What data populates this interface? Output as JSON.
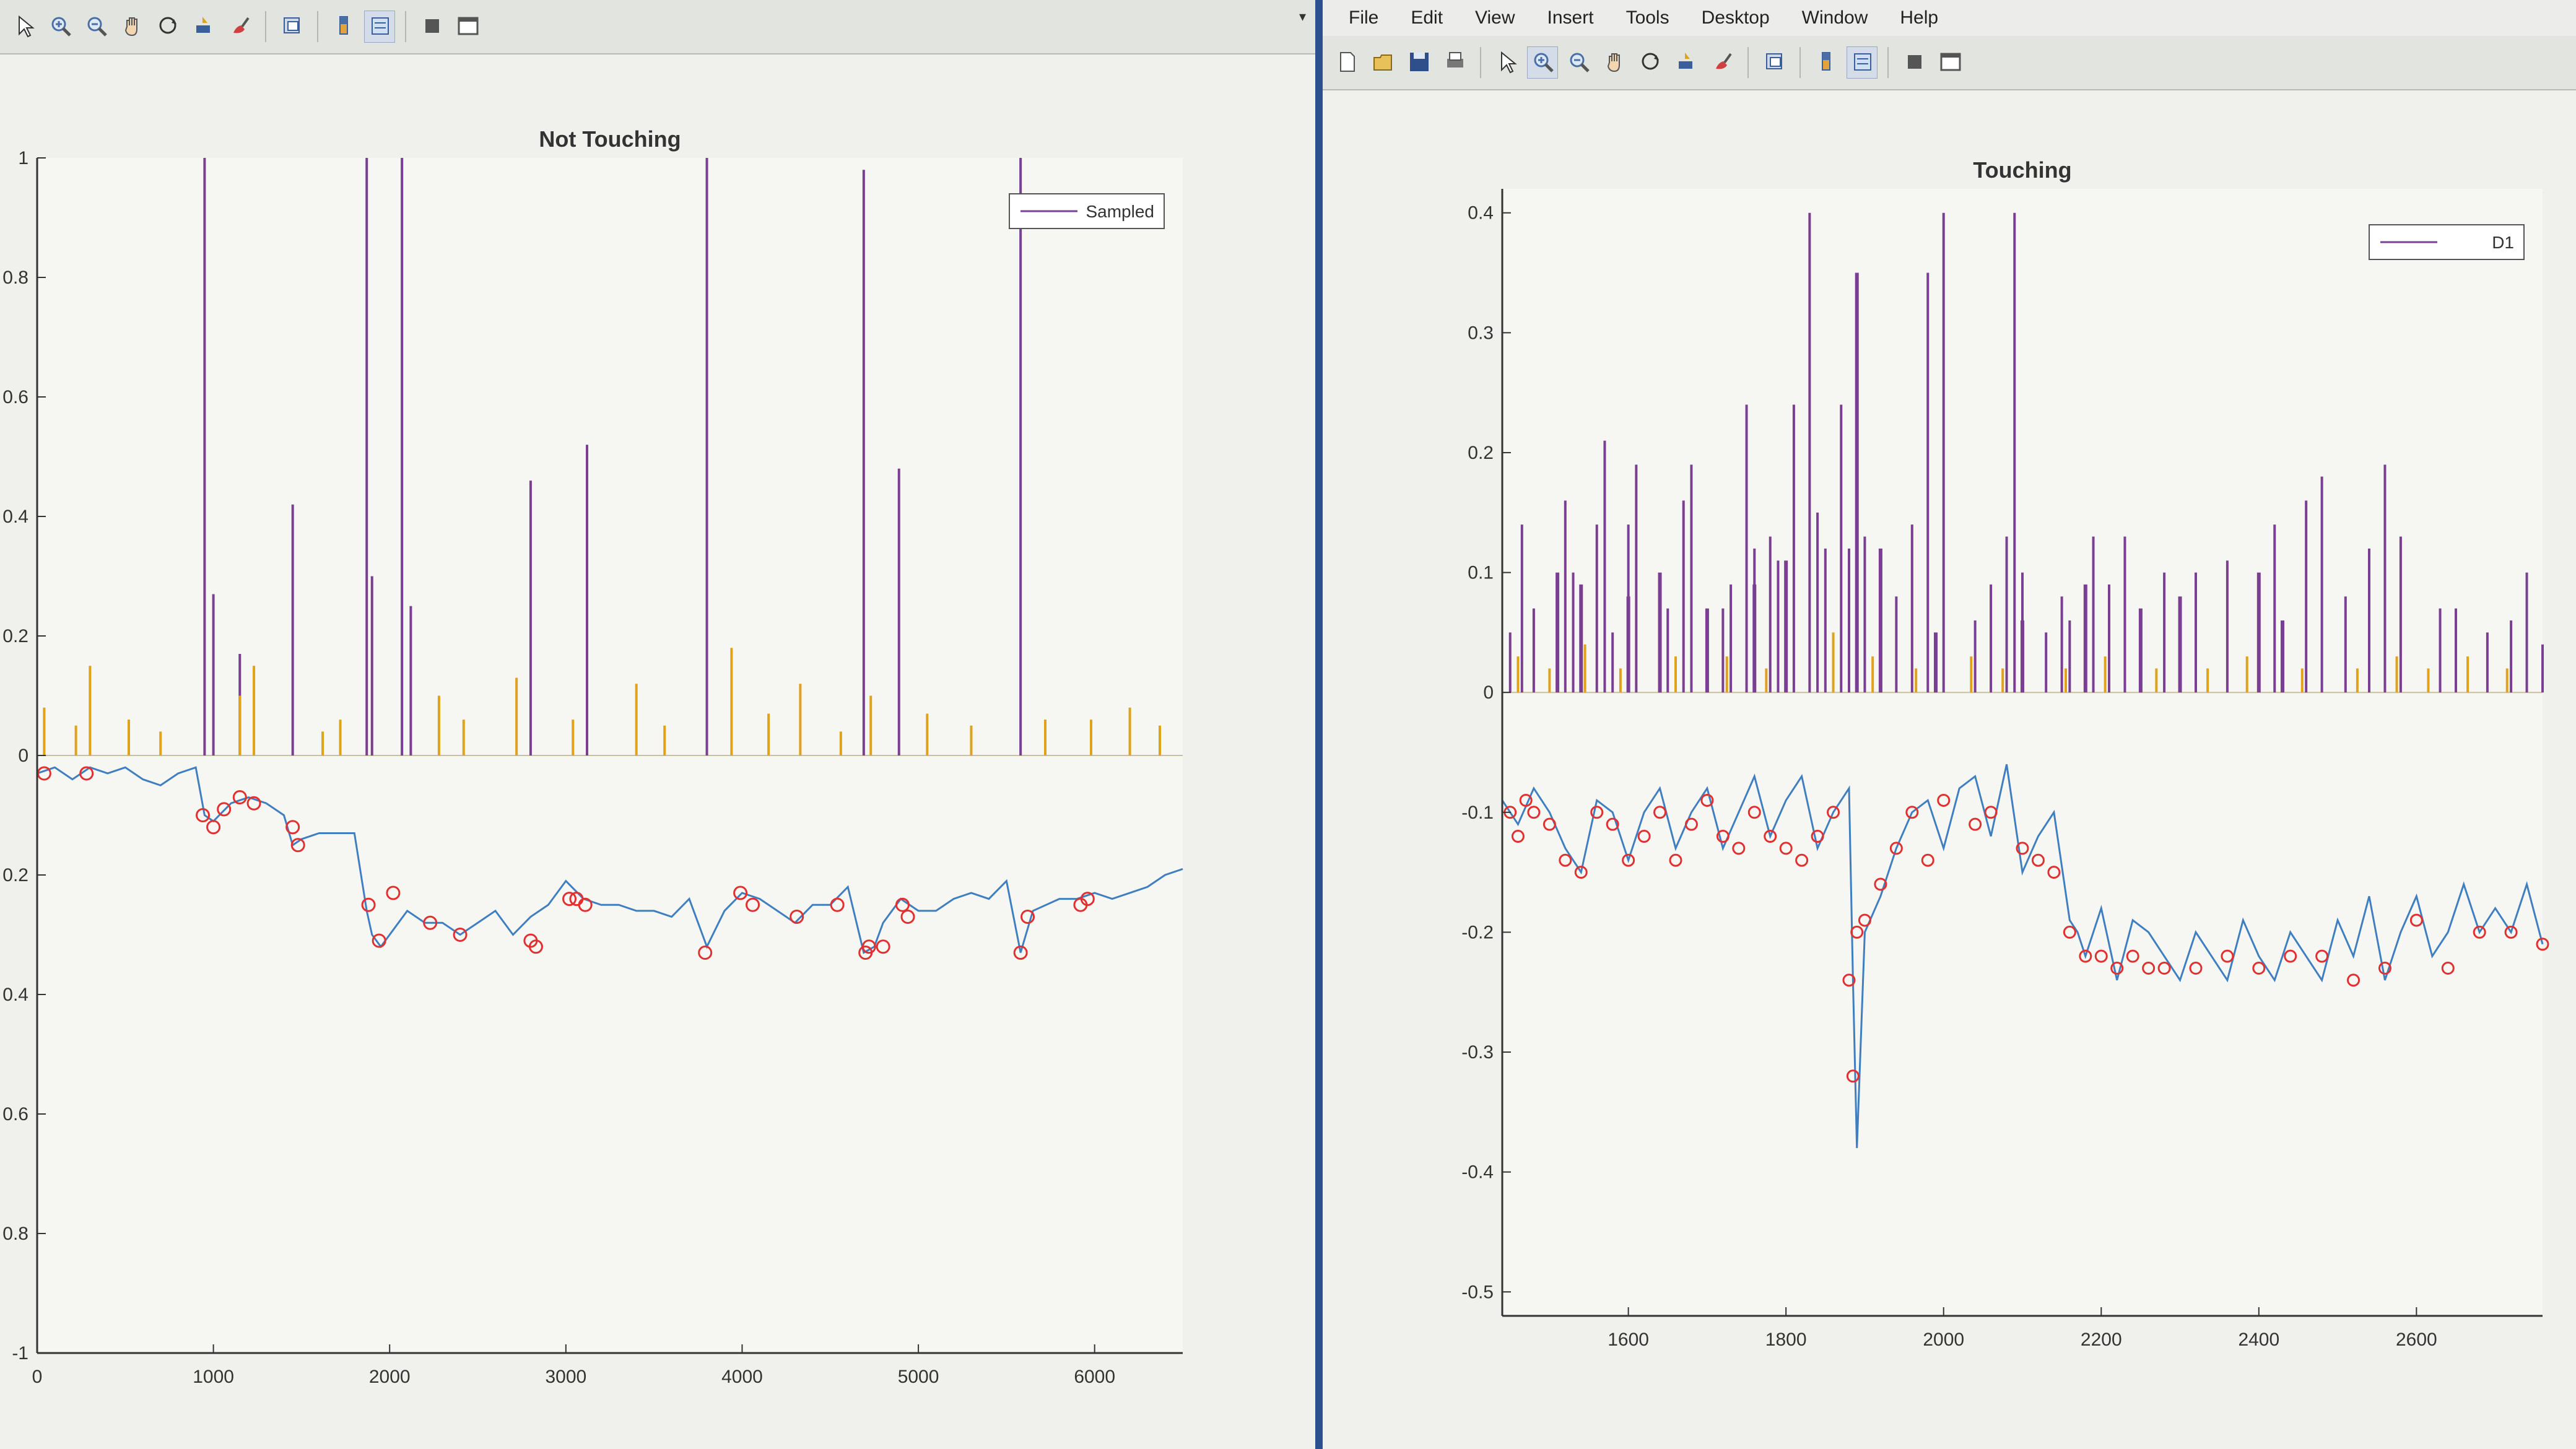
{
  "menu": {
    "items": [
      "File",
      "Edit",
      "View",
      "Insert",
      "Tools",
      "Desktop",
      "Window",
      "Help"
    ]
  },
  "toolbar_left": {
    "icons": [
      "pointer-icon",
      "zoom-in-icon",
      "zoom-out-icon",
      "pan-hand-icon",
      "rotate-3d-icon",
      "data-cursor-icon",
      "brush-icon",
      "link-plot-icon",
      "colorbar-icon",
      "legend-icon",
      "hide-plot-tools-icon",
      "show-plot-tools-icon"
    ]
  },
  "toolbar_right": {
    "icons": [
      "new-figure-icon",
      "open-file-icon",
      "save-icon",
      "print-icon",
      "pointer-icon",
      "zoom-in-icon",
      "zoom-out-icon",
      "pan-hand-icon",
      "rotate-3d-icon",
      "data-cursor-icon",
      "brush-icon",
      "link-plot-icon",
      "colorbar-icon",
      "legend-icon",
      "hide-plot-tools-icon",
      "show-plot-tools-icon"
    ]
  },
  "colors": {
    "spike_series": "#7a3f93",
    "orange_series": "#e0a21a",
    "blue_series": "#3f7fc0",
    "marker": "#e03030",
    "axes": "#333333"
  },
  "chart_data": [
    {
      "type": "line",
      "title": "Not Touching",
      "legend": [
        "Sampled"
      ],
      "legend_position": "top-right",
      "xlim": [
        0,
        6500
      ],
      "ylim": [
        -1,
        1
      ],
      "xticks": [
        0,
        1000,
        2000,
        3000,
        4000,
        5000,
        6000
      ],
      "yticks": [
        1,
        0.8,
        0.6,
        0.4,
        0.2,
        0,
        -0.2,
        -0.4,
        -0.6,
        -0.8,
        -1
      ],
      "ytick_labels": [
        "1",
        "0.8",
        "0.6",
        "0.4",
        "0.2",
        "0",
        "0.2",
        "0.4",
        "0.6",
        "0.8",
        "-1"
      ],
      "grid": false,
      "series": [
        {
          "name": "Sampled",
          "style": "spikes",
          "color": "#7a3f93",
          "x": [
            950,
            1000,
            1150,
            1450,
            1870,
            1900,
            2070,
            2120,
            2800,
            3120,
            3800,
            4690,
            4890,
            5580
          ],
          "y": [
            1.0,
            0.27,
            0.17,
            0.42,
            1.0,
            0.3,
            1.0,
            0.25,
            0.46,
            0.52,
            1.0,
            0.98,
            0.48,
            1.0
          ]
        },
        {
          "style": "spikes",
          "color": "#e0a21a",
          "x": [
            40,
            220,
            300,
            520,
            700,
            1150,
            1230,
            1620,
            1720,
            2280,
            2420,
            2720,
            3040,
            3400,
            3560,
            3940,
            4150,
            4330,
            4560,
            4730,
            5050,
            5300,
            5720,
            5980,
            6200,
            6370
          ],
          "y": [
            0.08,
            0.05,
            0.15,
            0.06,
            0.04,
            0.1,
            0.15,
            0.04,
            0.06,
            0.1,
            0.06,
            0.13,
            0.06,
            0.12,
            0.05,
            0.18,
            0.07,
            0.12,
            0.04,
            0.1,
            0.07,
            0.05,
            0.06,
            0.06,
            0.08,
            0.05
          ]
        },
        {
          "style": "line-markers",
          "color": "#3f7fc0",
          "x": [
            0,
            100,
            200,
            300,
            400,
            500,
            600,
            700,
            800,
            900,
            950,
            1000,
            1100,
            1200,
            1300,
            1400,
            1450,
            1500,
            1600,
            1700,
            1800,
            1870,
            1900,
            1950,
            2000,
            2100,
            2200,
            2300,
            2400,
            2500,
            2600,
            2700,
            2800,
            2900,
            3000,
            3100,
            3200,
            3300,
            3400,
            3500,
            3600,
            3700,
            3800,
            3900,
            4000,
            4100,
            4200,
            4300,
            4400,
            4500,
            4600,
            4690,
            4750,
            4800,
            4900,
            5000,
            5100,
            5200,
            5300,
            5400,
            5500,
            5580,
            5650,
            5800,
            5900,
            6000,
            6100,
            6200,
            6300,
            6400,
            6500
          ],
          "y": [
            -0.03,
            -0.02,
            -0.04,
            -0.02,
            -0.03,
            -0.02,
            -0.04,
            -0.05,
            -0.03,
            -0.02,
            -0.1,
            -0.11,
            -0.08,
            -0.07,
            -0.08,
            -0.1,
            -0.15,
            -0.14,
            -0.13,
            -0.13,
            -0.13,
            -0.26,
            -0.3,
            -0.32,
            -0.3,
            -0.26,
            -0.28,
            -0.28,
            -0.3,
            -0.28,
            -0.26,
            -0.3,
            -0.27,
            -0.25,
            -0.21,
            -0.24,
            -0.25,
            -0.25,
            -0.26,
            -0.26,
            -0.27,
            -0.24,
            -0.32,
            -0.26,
            -0.23,
            -0.24,
            -0.26,
            -0.28,
            -0.25,
            -0.25,
            -0.22,
            -0.33,
            -0.32,
            -0.28,
            -0.24,
            -0.26,
            -0.26,
            -0.24,
            -0.23,
            -0.24,
            -0.21,
            -0.33,
            -0.26,
            -0.24,
            -0.24,
            -0.23,
            -0.24,
            -0.23,
            -0.22,
            -0.2,
            -0.19
          ]
        },
        {
          "style": "markers",
          "color": "#e03030",
          "x": [
            40,
            280,
            940,
            1000,
            1060,
            1150,
            1230,
            1450,
            1480,
            1880,
            1940,
            2020,
            2230,
            2400,
            2800,
            2830,
            3020,
            3060,
            3110,
            3790,
            3990,
            4060,
            4310,
            4540,
            4700,
            4720,
            4800,
            4910,
            4940,
            5580,
            5620,
            5920,
            5960
          ],
          "y": [
            -0.03,
            -0.03,
            -0.1,
            -0.12,
            -0.09,
            -0.07,
            -0.08,
            -0.12,
            -0.15,
            -0.25,
            -0.31,
            -0.23,
            -0.28,
            -0.3,
            -0.31,
            -0.32,
            -0.24,
            -0.24,
            -0.25,
            -0.33,
            -0.23,
            -0.25,
            -0.27,
            -0.25,
            -0.33,
            -0.32,
            -0.32,
            -0.25,
            -0.27,
            -0.33,
            -0.27,
            -0.25,
            -0.24
          ]
        }
      ]
    },
    {
      "type": "line",
      "title": "Touching",
      "legend": [
        "D1"
      ],
      "legend_position": "top-right",
      "xlim": [
        1440,
        2760
      ],
      "ylim": [
        -0.52,
        0.42
      ],
      "xticks": [
        1600,
        1800,
        2000,
        2200,
        2400,
        2600
      ],
      "yticks": [
        0.4,
        0.3,
        0.2,
        0.1,
        0,
        -0.1,
        -0.2,
        -0.3,
        -0.4,
        -0.5
      ],
      "ytick_labels": [
        "0.4",
        "0.3",
        "0.2",
        "0.1",
        "0",
        "-0.1",
        "-0.2",
        "-0.3",
        "-0.4",
        "-0.5"
      ],
      "grid": false,
      "series": [
        {
          "name": "D1",
          "style": "spikes",
          "color": "#7a3f93",
          "x": [
            1450,
            1465,
            1480,
            1520,
            1530,
            1560,
            1570,
            1580,
            1600,
            1610,
            1640,
            1650,
            1670,
            1680,
            1700,
            1720,
            1730,
            1750,
            1760,
            1780,
            1790,
            1810,
            1830,
            1840,
            1850,
            1870,
            1880,
            1900,
            1920,
            1940,
            1960,
            1980,
            2000,
            2040,
            2060,
            2080,
            2090,
            2100,
            2130,
            2150,
            2160,
            2190,
            2210,
            2230,
            2250,
            2280,
            2320,
            2360,
            2420,
            2460,
            2480,
            2510,
            2540,
            2560,
            2580,
            2630,
            2650,
            2690,
            2720,
            2740,
            2760
          ],
          "y": [
            0.05,
            0.14,
            0.07,
            0.16,
            0.1,
            0.14,
            0.21,
            0.05,
            0.14,
            0.19,
            0.09,
            0.07,
            0.16,
            0.19,
            0.04,
            0.07,
            0.09,
            0.24,
            0.12,
            0.13,
            0.11,
            0.24,
            0.4,
            0.15,
            0.12,
            0.24,
            0.12,
            0.13,
            0.1,
            0.08,
            0.14,
            0.35,
            0.4,
            0.06,
            0.09,
            0.13,
            0.4,
            0.1,
            0.05,
            0.08,
            0.06,
            0.13,
            0.09,
            0.13,
            0.06,
            0.1,
            0.1,
            0.11,
            0.14,
            0.16,
            0.18,
            0.08,
            0.12,
            0.19,
            0.13,
            0.07,
            0.07,
            0.05,
            0.06,
            0.1,
            0.04
          ],
          "markers": {
            "x": [
              1510,
              1540,
              1600,
              1640,
              1700,
              1760,
              1800,
              1890,
              1920,
              1990,
              2100,
              2180,
              2250,
              2300,
              2400,
              2430
            ],
            "y": [
              0.1,
              0.09,
              0.08,
              0.1,
              0.07,
              0.09,
              0.11,
              0.35,
              0.12,
              0.05,
              0.06,
              0.09,
              0.07,
              0.08,
              0.1,
              0.06
            ]
          }
        },
        {
          "style": "spikes",
          "color": "#e0a21a",
          "x": [
            1460,
            1500,
            1545,
            1590,
            1660,
            1725,
            1775,
            1860,
            1910,
            1965,
            2035,
            2075,
            2155,
            2205,
            2270,
            2335,
            2385,
            2455,
            2525,
            2575,
            2615,
            2665,
            2715
          ],
          "y": [
            0.03,
            0.02,
            0.04,
            0.02,
            0.03,
            0.03,
            0.02,
            0.05,
            0.03,
            0.02,
            0.03,
            0.02,
            0.02,
            0.03,
            0.02,
            0.02,
            0.03,
            0.02,
            0.02,
            0.03,
            0.02,
            0.03,
            0.02
          ]
        },
        {
          "style": "line-markers",
          "color": "#3f7fc0",
          "x": [
            1440,
            1460,
            1480,
            1500,
            1520,
            1540,
            1560,
            1580,
            1600,
            1620,
            1640,
            1660,
            1680,
            1700,
            1720,
            1740,
            1760,
            1780,
            1800,
            1820,
            1840,
            1860,
            1880,
            1885,
            1890,
            1900,
            1920,
            1940,
            1960,
            1980,
            2000,
            2020,
            2040,
            2060,
            2080,
            2100,
            2120,
            2140,
            2160,
            2170,
            2180,
            2200,
            2220,
            2240,
            2260,
            2280,
            2300,
            2320,
            2340,
            2360,
            2380,
            2400,
            2420,
            2440,
            2460,
            2480,
            2500,
            2520,
            2540,
            2560,
            2580,
            2600,
            2620,
            2640,
            2660,
            2680,
            2700,
            2720,
            2740,
            2760
          ],
          "y": [
            -0.09,
            -0.11,
            -0.08,
            -0.1,
            -0.13,
            -0.15,
            -0.09,
            -0.1,
            -0.14,
            -0.1,
            -0.08,
            -0.13,
            -0.1,
            -0.08,
            -0.13,
            -0.1,
            -0.07,
            -0.12,
            -0.09,
            -0.07,
            -0.13,
            -0.1,
            -0.08,
            -0.24,
            -0.38,
            -0.2,
            -0.17,
            -0.13,
            -0.1,
            -0.09,
            -0.13,
            -0.08,
            -0.07,
            -0.12,
            -0.06,
            -0.15,
            -0.12,
            -0.1,
            -0.19,
            -0.2,
            -0.22,
            -0.18,
            -0.24,
            -0.19,
            -0.2,
            -0.22,
            -0.24,
            -0.2,
            -0.22,
            -0.24,
            -0.19,
            -0.22,
            -0.24,
            -0.2,
            -0.22,
            -0.24,
            -0.19,
            -0.22,
            -0.17,
            -0.24,
            -0.2,
            -0.17,
            -0.22,
            -0.2,
            -0.16,
            -0.2,
            -0.18,
            -0.2,
            -0.16,
            -0.21
          ],
          "markers_x": [
            1450,
            1460,
            1470,
            1480,
            1500,
            1520,
            1540,
            1560,
            1580,
            1600,
            1620,
            1640,
            1660,
            1680,
            1700,
            1720,
            1740,
            1760,
            1780,
            1800,
            1820,
            1840,
            1860,
            1880,
            1885,
            1890,
            1900,
            1920,
            1940,
            1960,
            1980,
            2000,
            2040,
            2060,
            2100,
            2120,
            2140,
            2160,
            2180,
            2200,
            2220,
            2240,
            2260,
            2280,
            2320,
            2360,
            2400,
            2440,
            2480,
            2520,
            2560,
            2600,
            2640,
            2680,
            2720,
            2760
          ],
          "markers_y": [
            -0.1,
            -0.12,
            -0.09,
            -0.1,
            -0.11,
            -0.14,
            -0.15,
            -0.1,
            -0.11,
            -0.14,
            -0.12,
            -0.1,
            -0.14,
            -0.11,
            -0.09,
            -0.12,
            -0.13,
            -0.1,
            -0.12,
            -0.13,
            -0.14,
            -0.12,
            -0.1,
            -0.24,
            -0.32,
            -0.2,
            -0.19,
            -0.16,
            -0.13,
            -0.1,
            -0.14,
            -0.09,
            -0.11,
            -0.1,
            -0.13,
            -0.14,
            -0.15,
            -0.2,
            -0.22,
            -0.22,
            -0.23,
            -0.22,
            -0.23,
            -0.23,
            -0.23,
            -0.22,
            -0.23,
            -0.22,
            -0.22,
            -0.24,
            -0.23,
            -0.19,
            -0.23,
            -0.2,
            -0.2,
            -0.21
          ]
        }
      ]
    }
  ]
}
